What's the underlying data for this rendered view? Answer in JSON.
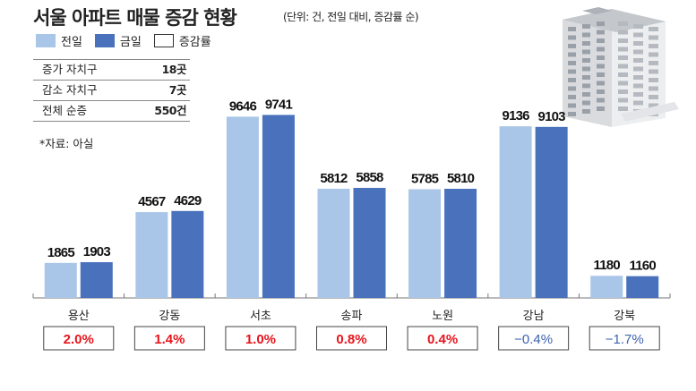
{
  "title": "서울 아파트 매물 증감 현황",
  "subtitle": "(단위: 건, 전일 대비, 증감률 순)",
  "legend": [
    {
      "label": "전일",
      "color": "#a9c6e8"
    },
    {
      "label": "금일",
      "color": "#4a71bc"
    },
    {
      "label": "증감률",
      "color": "#ffffff"
    }
  ],
  "stats": [
    {
      "label": "증가 자치구",
      "value": "18곳"
    },
    {
      "label": "감소 자치구",
      "value": "7곳"
    },
    {
      "label": "전체 순증",
      "value": "550건"
    }
  ],
  "source": "*자료: 아실",
  "colors": {
    "positive": "#e8141c",
    "negative": "#3d63b0"
  },
  "chart_data": {
    "type": "bar",
    "categories": [
      "용산",
      "강동",
      "서초",
      "송파",
      "노원",
      "강남",
      "강북"
    ],
    "series": [
      {
        "name": "전일",
        "values": [
          1865,
          4567,
          9646,
          5812,
          5785,
          9136,
          1180
        ]
      },
      {
        "name": "금일",
        "values": [
          1903,
          4629,
          9741,
          5858,
          5810,
          9103,
          1160
        ]
      }
    ],
    "change_rates": [
      "2.0%",
      "1.4%",
      "1.0%",
      "0.8%",
      "0.4%",
      "−0.4%",
      "−1.7%"
    ],
    "change_values": [
      2.0,
      1.4,
      1.0,
      0.8,
      0.4,
      -0.4,
      -1.7
    ],
    "ylim": [
      0,
      10000
    ],
    "grid": false
  }
}
